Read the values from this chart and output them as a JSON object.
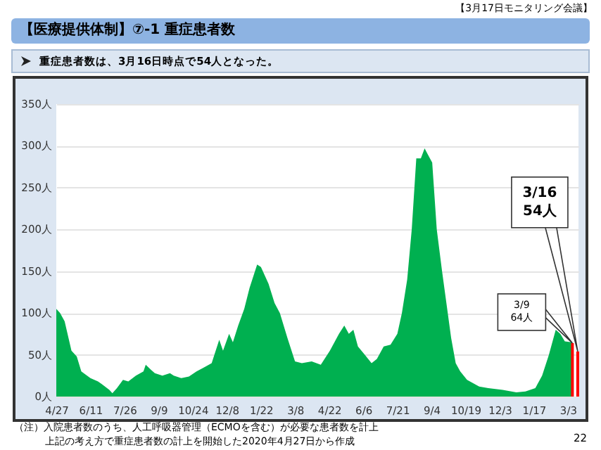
{
  "chart_data": {
    "type": "area",
    "title": "【医療提供体制】⑦-1 重症患者数",
    "subtitle": "重症患者数は、3月16日時点で54人となった。",
    "series": [
      {
        "color": "#00b050",
        "x": [
          "2020-04-27",
          "2020-05-02",
          "2020-05-08",
          "2020-05-17",
          "2020-05-24",
          "2020-05-30",
          "2020-06-11",
          "2020-06-21",
          "2020-06-26",
          "2020-07-06",
          "2020-07-10",
          "2020-07-16",
          "2020-07-24",
          "2020-07-31",
          "2020-08-10",
          "2020-08-20",
          "2020-08-23",
          "2020-08-30",
          "2020-09-04",
          "2020-09-14",
          "2020-09-24",
          "2020-09-29",
          "2020-10-09",
          "2020-10-19",
          "2020-10-29",
          "2020-11-08",
          "2020-11-18",
          "2020-11-28",
          "2020-12-03",
          "2020-12-11",
          "2020-12-16",
          "2020-12-23",
          "2020-12-31",
          "2021-01-07",
          "2021-01-17",
          "2021-01-22",
          "2021-02-01",
          "2021-02-09",
          "2021-02-16",
          "2021-02-26",
          "2021-03-08",
          "2021-03-17",
          "2021-03-30",
          "2021-04-11",
          "2021-04-23",
          "2021-05-05",
          "2021-05-12",
          "2021-05-18",
          "2021-05-24",
          "2021-05-30",
          "2021-06-08",
          "2021-06-17",
          "2021-06-24",
          "2021-07-03",
          "2021-07-12",
          "2021-07-21",
          "2021-07-27",
          "2021-08-03",
          "2021-08-09",
          "2021-08-15",
          "2021-08-21",
          "2021-08-26",
          "2021-08-30",
          "2021-09-05",
          "2021-09-11",
          "2021-09-18",
          "2021-09-24",
          "2021-09-30",
          "2021-10-06",
          "2021-10-12",
          "2021-10-21",
          "2021-11-06",
          "2021-11-18",
          "2021-12-07",
          "2021-12-25",
          "2022-01-06",
          "2022-01-19",
          "2022-01-28",
          "2022-02-06",
          "2022-02-15",
          "2022-02-21",
          "2022-02-27",
          "2022-03-08"
        ],
        "values": [
          105,
          100,
          90,
          55,
          48,
          30,
          22,
          18,
          15,
          8,
          4,
          10,
          20,
          18,
          25,
          30,
          38,
          32,
          28,
          25,
          28,
          25,
          22,
          24,
          30,
          35,
          40,
          68,
          55,
          75,
          65,
          85,
          105,
          130,
          158,
          155,
          135,
          112,
          100,
          70,
          42,
          40,
          42,
          38,
          55,
          75,
          85,
          75,
          80,
          60,
          50,
          40,
          45,
          60,
          62,
          75,
          100,
          140,
          200,
          285,
          285,
          297,
          290,
          280,
          200,
          150,
          110,
          70,
          40,
          30,
          20,
          12,
          10,
          8,
          5,
          6,
          10,
          25,
          50,
          80,
          75,
          66,
          65
        ]
      },
      {
        "color": "#ff0000",
        "type": "bar",
        "x": [
          "2022-03-09",
          "2022-03-16"
        ],
        "values": [
          64,
          54
        ]
      }
    ],
    "xlim": [
      "2020-04-27",
      "2022-03-17"
    ],
    "xticks": [
      {
        "value": "2020-04-27",
        "label": "4/27"
      },
      {
        "value": "2020-06-11",
        "label": "6/11"
      },
      {
        "value": "2020-07-26",
        "label": "7/26"
      },
      {
        "value": "2020-09-09",
        "label": "9/9"
      },
      {
        "value": "2020-10-24",
        "label": "10/24"
      },
      {
        "value": "2020-12-08",
        "label": "12/8"
      },
      {
        "value": "2021-01-22",
        "label": "1/22"
      },
      {
        "value": "2021-03-08",
        "label": "3/8"
      },
      {
        "value": "2021-04-22",
        "label": "4/22"
      },
      {
        "value": "2021-06-06",
        "label": "6/6"
      },
      {
        "value": "2021-07-21",
        "label": "7/21"
      },
      {
        "value": "2021-09-04",
        "label": "9/4"
      },
      {
        "value": "2021-10-19",
        "label": "10/19"
      },
      {
        "value": "2021-12-03",
        "label": "12/3"
      },
      {
        "value": "2022-01-17",
        "label": "1/17"
      },
      {
        "value": "2022-03-03",
        "label": "3/3"
      }
    ],
    "ylim": [
      0,
      350
    ],
    "yticks": [
      {
        "value": 0,
        "label": "0人"
      },
      {
        "value": 50,
        "label": "50人"
      },
      {
        "value": 100,
        "label": "100人"
      },
      {
        "value": 150,
        "label": "150人"
      },
      {
        "value": 200,
        "label": "200人"
      },
      {
        "value": 250,
        "label": "250人"
      },
      {
        "value": 300,
        "label": "300人"
      },
      {
        "value": 350,
        "label": "350人"
      }
    ],
    "grid": "y",
    "annotations": [
      "【3月17日モニタリング会議】",
      "（注）入院患者数のうち、人工呼吸器管理（ECMOを含む）が必要な患者数を計上",
      "上記の考え方で重症患者数の計上を開始した2020年4月27日から作成",
      "22",
      {
        "text": "3/9\n64人",
        "x": "2022-03-09",
        "y": 64
      },
      {
        "text": "3/16\n54人",
        "x": "2022-03-16",
        "y": 54
      }
    ]
  }
}
